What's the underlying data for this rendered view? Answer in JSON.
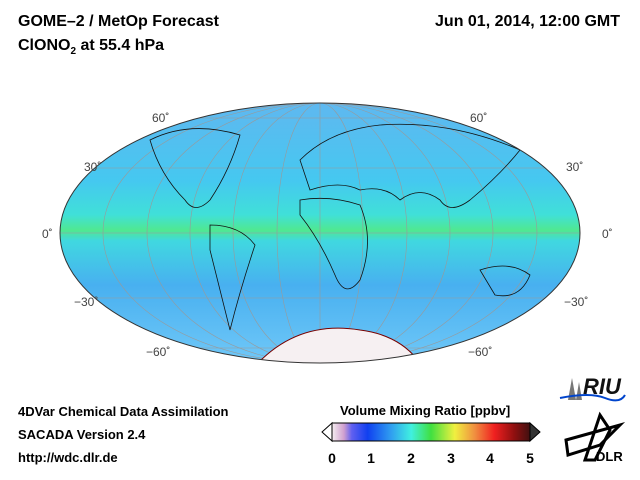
{
  "header": {
    "title": "GOME–2 / MetOp Forecast",
    "species": "ClONO",
    "species_sub": "2",
    "species_suffix": " at 55.4 hPa",
    "datetime": "Jun 01, 2014, 12:00 GMT"
  },
  "map": {
    "projection": "Hammer/Aitoff global",
    "lat_labels": [
      "60˚",
      "30˚",
      "0˚",
      "−30˚",
      "−60˚"
    ]
  },
  "footer": {
    "line1": "4DVar Chemical Data Assimilation",
    "line2": "SACADA Version 2.4",
    "line3": "http://wdc.dlr.de"
  },
  "colorbar": {
    "title": "Volume Mixing Ratio [ppbv]",
    "ticks": [
      "0",
      "1",
      "2",
      "3",
      "4",
      "5"
    ],
    "min": 0,
    "max": 5
  },
  "logos": {
    "riu": "RIU",
    "dlr": "DLR"
  }
}
